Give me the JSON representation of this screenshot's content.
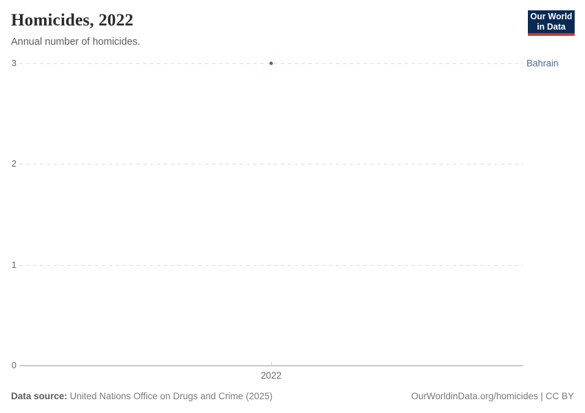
{
  "header": {
    "title": "Homicides, 2022",
    "subtitle": "Annual number of homicides.",
    "logo": {
      "line1": "Our World",
      "line2": "in Data",
      "bg_color": "#0a2a55",
      "accent_color": "#d0342a"
    }
  },
  "chart_data": {
    "type": "scatter",
    "title": "Homicides, 2022",
    "xlabel": "",
    "ylabel": "",
    "x": [
      2022
    ],
    "xticks": [
      "2022"
    ],
    "series": [
      {
        "name": "Bahrain",
        "values": [
          3
        ],
        "color": "#4c6a9c"
      }
    ],
    "ylim": [
      0,
      3
    ],
    "yticks": [
      0,
      1,
      2,
      3
    ],
    "grid": "horizontal-dashed",
    "legend_position": "entity-label-right"
  },
  "colors": {
    "gridline": "#dddddd",
    "axis_line": "#9a9a9a",
    "tick_text": "#666666",
    "entity_label": "#4c6a9c"
  },
  "footer": {
    "source_label": "Data source:",
    "source_text": " United Nations Office on Drugs and Crime (2025)",
    "attribution": "OurWorldinData.org/homicides | CC BY"
  }
}
